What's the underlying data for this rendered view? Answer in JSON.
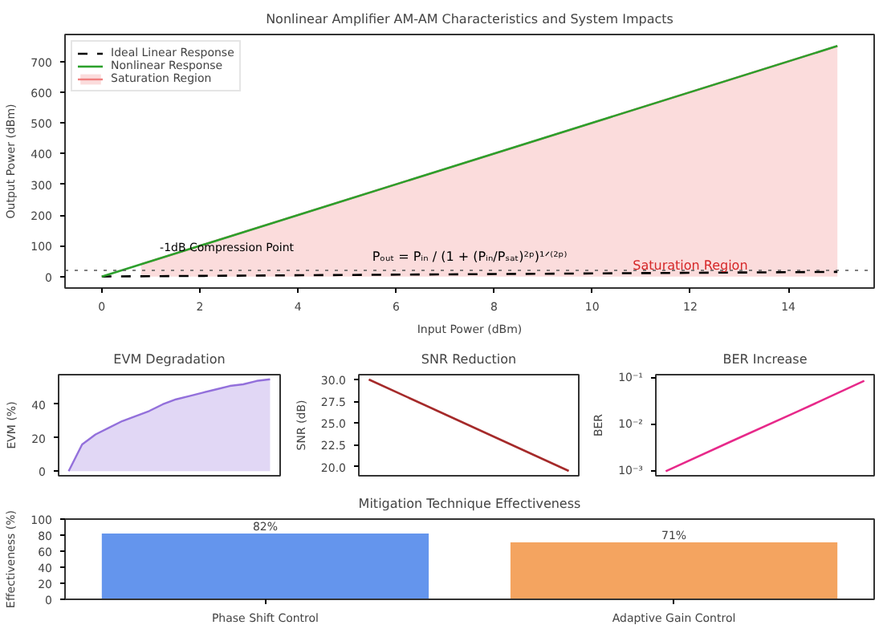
{
  "chart_data": [
    {
      "type": "line",
      "title": "Nonlinear Amplifier AM-AM Characteristics and System Impacts",
      "xlabel": "Input Power (dBm)",
      "ylabel": "Output Power (dBm)",
      "series": [
        {
          "name": "Ideal Linear Response",
          "type": "line",
          "color": "#000000",
          "line_style": "dashed",
          "x": [
            0,
            15
          ],
          "values": [
            0,
            15
          ]
        },
        {
          "name": "Nonlinear Response",
          "type": "line",
          "color": "#2ca02c",
          "x": [
            0,
            15
          ],
          "values": [
            0,
            750
          ]
        },
        {
          "name": "Saturation Region",
          "type": "area",
          "color": "#f08080",
          "x": [
            0.8,
            15
          ],
          "values": [
            40,
            750
          ]
        }
      ],
      "xlim": [
        -0.75,
        15.75
      ],
      "ylim": [
        -37.5,
        787.5
      ],
      "xticks": [
        0,
        2,
        4,
        6,
        8,
        10,
        12,
        14
      ],
      "yticks": [
        0,
        100,
        200,
        300,
        400,
        500,
        600,
        700
      ],
      "ref_lines": [
        {
          "axis": "y",
          "value": 20,
          "label": "-1dB Compression Point",
          "line_style": "dotted",
          "color": "#555555"
        }
      ],
      "annotations": [
        "Pₒᵤₜ = Pᵢₙ / (1 + (Pᵢₙ/Pₛₐₜ)²ᵖ)¹ᐟ⁽²ᵖ⁾",
        {
          "text": "Saturation Region",
          "x": 12,
          "y": 35
        }
      ],
      "legend": "top left",
      "grid": false
    },
    {
      "type": "area",
      "title": "EVM Degradation",
      "ylabel": "EVM (%)",
      "categories": [
        null,
        null,
        null,
        null,
        null,
        null,
        null,
        null,
        null,
        null,
        null,
        null,
        null,
        null,
        null,
        null
      ],
      "series": [
        {
          "color": "#9370db",
          "values": [
            0,
            16,
            22,
            26,
            30,
            33,
            36,
            40,
            43,
            45,
            47,
            49,
            51,
            52,
            54,
            55
          ]
        }
      ],
      "ylim": [
        -2.75,
        57.75
      ],
      "yticks": [
        0,
        20,
        40
      ],
      "tick_labels": "y",
      "grid": false
    },
    {
      "type": "line",
      "title": "SNR Reduction",
      "ylabel": "SNR (dB)",
      "categories": [
        null,
        null,
        null,
        null
      ],
      "series": [
        {
          "color": "#a52a2a",
          "values": [
            30,
            26.5,
            23,
            19.5
          ]
        }
      ],
      "ylim": [
        18.95,
        30.55
      ],
      "yticks": [
        {
          "value": 20,
          "label": "20.0"
        },
        {
          "value": 22.5,
          "label": "22.5"
        },
        {
          "value": 25,
          "label": "25.0"
        },
        {
          "value": 27.5,
          "label": "27.5"
        },
        {
          "value": 30,
          "label": "30.0"
        }
      ],
      "tick_labels": "y",
      "grid": false
    },
    {
      "type": "line",
      "title": "BER Increase",
      "ylabel": "BER",
      "log": "y",
      "categories": [
        null,
        null,
        null,
        null
      ],
      "series": [
        {
          "color": "#e7298a",
          "values": [
            0.001,
            0.0044,
            0.019,
            0.085
          ]
        }
      ],
      "ylim": [
        0.0008,
        0.115
      ],
      "yticks": [
        {
          "value": 0.001,
          "label": "10⁻³"
        },
        {
          "value": 0.01,
          "label": "10⁻²"
        },
        {
          "value": 0.1,
          "label": "10⁻¹"
        }
      ],
      "tick_labels": "y",
      "grid": false
    },
    {
      "type": "bar",
      "title": "Mitigation Technique Effectiveness",
      "ylabel": "Effectiveness (%)",
      "categories": [
        "Phase Shift Control",
        "Adaptive Gain Control"
      ],
      "values": [
        82,
        71
      ],
      "colors": [
        "#6495ed",
        "#f4a460"
      ],
      "value_labels": [
        "82%",
        "71%"
      ],
      "ylim": [
        0,
        100
      ],
      "yticks": [
        0,
        20,
        40,
        60,
        80,
        100
      ],
      "grid": false
    }
  ]
}
